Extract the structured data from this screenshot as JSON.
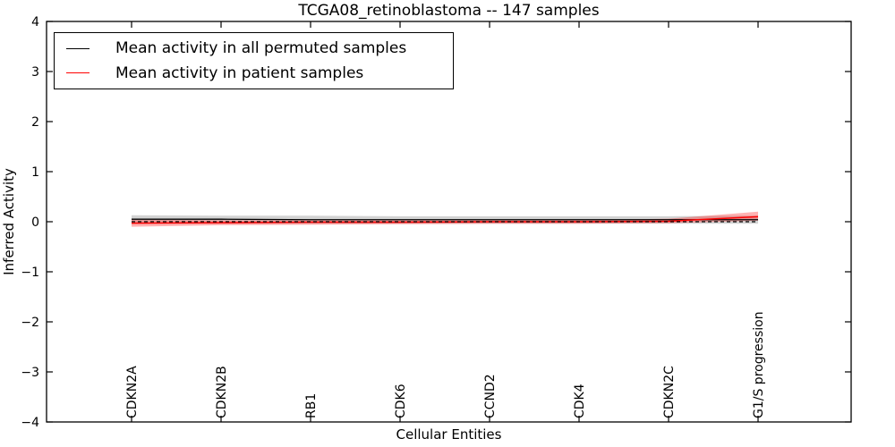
{
  "chart_data": {
    "type": "line",
    "title": "TCGA08_retinoblastoma -- 147 samples",
    "xlabel": "Cellular Entities",
    "ylabel": "Inferred Activity",
    "ylim": [
      -4,
      4
    ],
    "yticks": [
      4,
      3,
      2,
      1,
      0,
      -1,
      -2,
      -3,
      -4
    ],
    "ytick_labels": [
      "4",
      "3",
      "2",
      "1",
      "0",
      "−1",
      "−2",
      "−3",
      "−4"
    ],
    "categories": [
      "CDKN2A",
      "CDKN2B",
      "RB1",
      "CDK6",
      "CCND2",
      "CDK4",
      "CDKN2C",
      "G1/S progression"
    ],
    "grid": false,
    "legend_position": "upper left",
    "x_tick_labels_rotation": 90,
    "series": [
      {
        "name": "Mean activity in all permuted samples",
        "color": "#000000",
        "line_style": "solid",
        "values": [
          0.05,
          0.05,
          0.04,
          0.04,
          0.04,
          0.04,
          0.04,
          0.04
        ],
        "band_upper": [
          0.13,
          0.12,
          0.12,
          0.11,
          0.11,
          0.11,
          0.11,
          0.12
        ],
        "band_lower": [
          -0.04,
          -0.04,
          -0.04,
          -0.04,
          -0.04,
          -0.04,
          -0.04,
          -0.04
        ],
        "band_color": "rgba(128,128,128,0.35)"
      },
      {
        "name": "Mean activity in patient samples",
        "color": "#ff0000",
        "line_style": "solid",
        "values": [
          -0.03,
          -0.02,
          -0.01,
          -0.01,
          0.0,
          0.0,
          0.01,
          0.1
        ],
        "band_upper": [
          0.04,
          0.03,
          0.03,
          0.03,
          0.03,
          0.03,
          0.06,
          0.2
        ],
        "band_lower": [
          -0.1,
          -0.07,
          -0.06,
          -0.05,
          -0.04,
          -0.04,
          -0.03,
          0.02
        ],
        "band_color": "rgba(255,0,0,0.3)"
      }
    ],
    "reference_line": {
      "value": 0,
      "style": "dashed",
      "color": "#000000"
    }
  }
}
